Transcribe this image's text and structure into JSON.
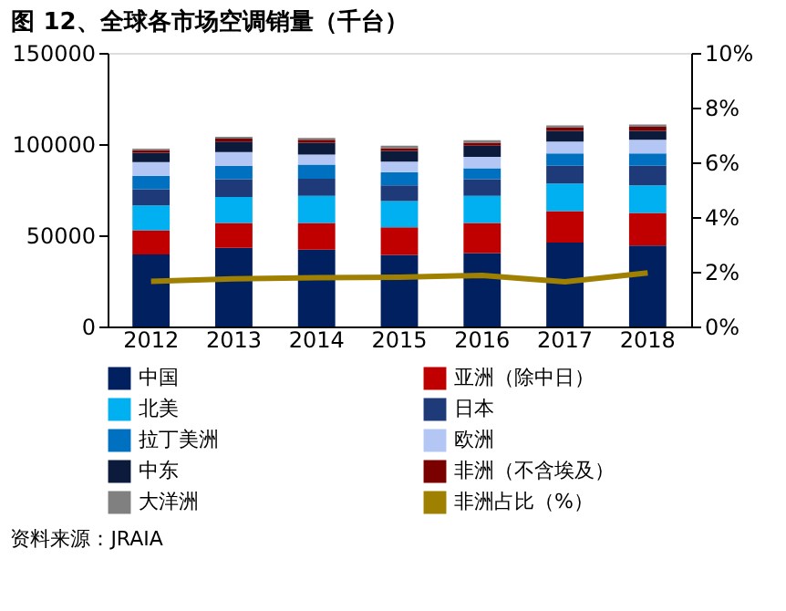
{
  "chart_data": {
    "type": "bar",
    "title": "图 12、全球各市场空调销量（千台）",
    "stacked": true,
    "categories": [
      "2012",
      "2013",
      "2014",
      "2015",
      "2016",
      "2017",
      "2018"
    ],
    "series": [
      {
        "name": "中国",
        "color": "#002060",
        "values": [
          39500,
          43100,
          42100,
          39200,
          40200,
          46000,
          44400
        ]
      },
      {
        "name": "亚洲（除中日）",
        "color": "#c00000",
        "values": [
          13300,
          13600,
          14600,
          15200,
          16500,
          17200,
          17800
        ]
      },
      {
        "name": "北美",
        "color": "#00b0f0",
        "values": [
          13600,
          14300,
          14900,
          14300,
          14900,
          15200,
          15200
        ]
      },
      {
        "name": "日本",
        "color": "#1f3a78",
        "values": [
          8800,
          9700,
          9400,
          8700,
          9100,
          9700,
          10700
        ]
      },
      {
        "name": "拉丁美洲",
        "color": "#0070c0",
        "values": [
          7400,
          7400,
          7800,
          7200,
          6100,
          6800,
          6800
        ]
      },
      {
        "name": "欧洲",
        "color": "#b4c7f4",
        "values": [
          7500,
          7500,
          5500,
          5800,
          6200,
          6500,
          7500
        ]
      },
      {
        "name": "中东",
        "color": "#0c1a3c",
        "values": [
          5200,
          5800,
          6500,
          5800,
          6100,
          5800,
          4800
        ]
      },
      {
        "name": "非洲（不含埃及）",
        "color": "#7b0000",
        "values": [
          1300,
          1600,
          1600,
          1600,
          1700,
          2000,
          2300
        ]
      },
      {
        "name": "大洋洲",
        "color": "#808080",
        "values": [
          900,
          1000,
          1000,
          1300,
          1300,
          1000,
          1300
        ]
      },
      {
        "name": "非洲占比（%）",
        "color": "#a08000",
        "type": "line",
        "axis": "y2",
        "values": [
          1.65,
          1.74,
          1.78,
          1.8,
          1.87,
          1.63,
          1.96
        ]
      }
    ],
    "ylim": [
      0,
      150000
    ],
    "yticks": [
      0,
      50000,
      100000,
      150000
    ],
    "y2lim": [
      0,
      10
    ],
    "y2ticks": [
      {
        "value": 0,
        "label": "0%"
      },
      {
        "value": 2,
        "label": "2%"
      },
      {
        "value": 4,
        "label": "4%"
      },
      {
        "value": 6,
        "label": "6%"
      },
      {
        "value": 8,
        "label": "8%"
      },
      {
        "value": 10,
        "label": "10%"
      }
    ],
    "legend": "bottom",
    "grid": false,
    "annotations": [
      "资料来源：JRAIA"
    ]
  }
}
